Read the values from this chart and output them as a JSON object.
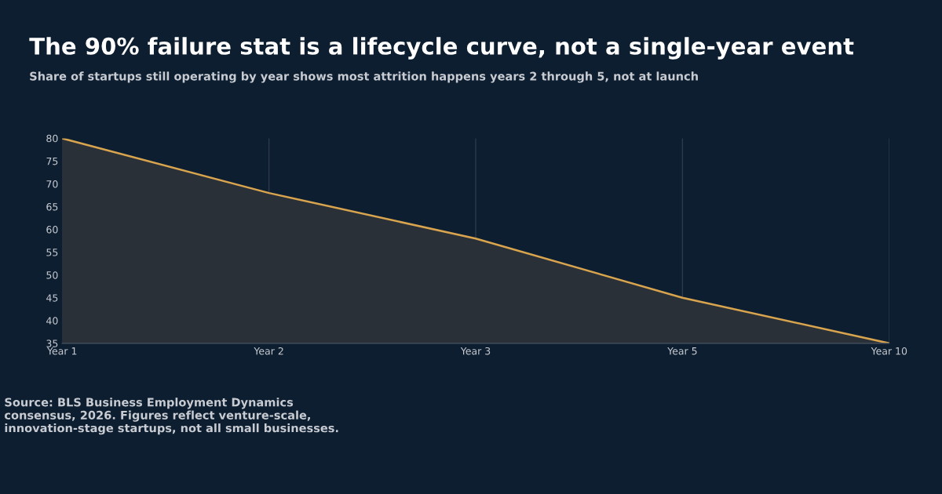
{
  "chart_data": {
    "type": "area",
    "title": "The 90% failure stat is a lifecycle curve, not a single-year event",
    "subtitle": "Share of startups still operating by year shows most attrition happens years 2 through 5, not at launch",
    "categories": [
      "Year 1",
      "Year 2",
      "Year 3",
      "Year 5",
      "Year 10"
    ],
    "series": [
      {
        "color": "#d9a44e",
        "values": [
          80,
          68,
          58,
          45,
          35
        ]
      }
    ],
    "ylim": [
      35,
      80
    ],
    "yticks": [
      35,
      40,
      45,
      50,
      55,
      60,
      65,
      70,
      75,
      80
    ],
    "grid": "x",
    "legend": false,
    "marker": "none",
    "line_style": "solid",
    "annotations": [
      "Source: BLS Business Employment Dynamics consensus, 2026. Figures reflect venture-scale, innovation-stage startups, not all small businesses."
    ]
  }
}
